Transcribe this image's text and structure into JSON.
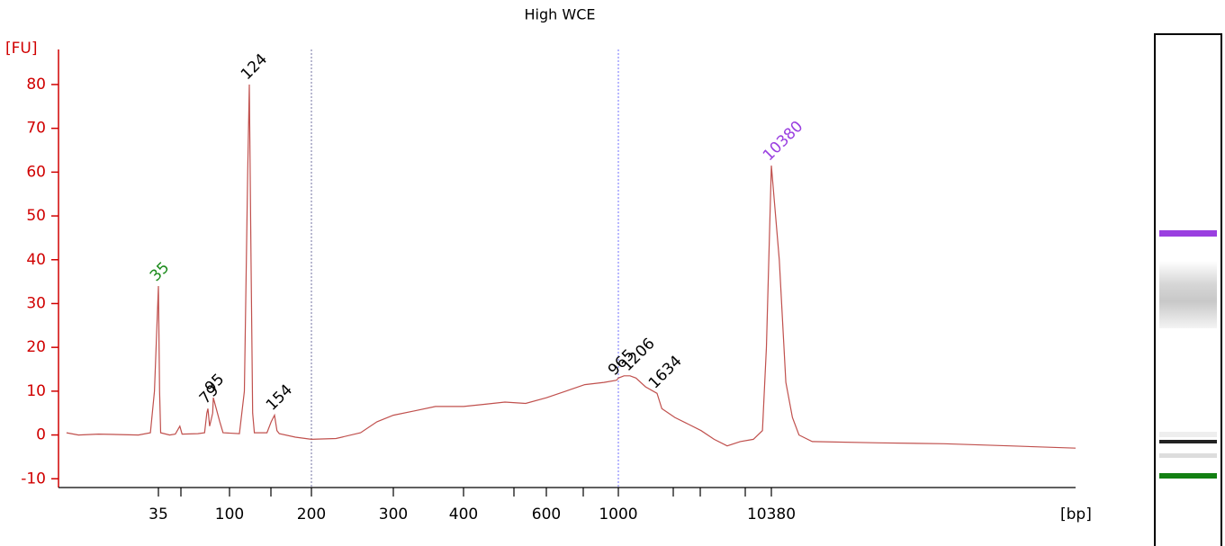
{
  "chart_data": {
    "type": "line",
    "title": "High WCE",
    "y_label": "[FU]",
    "x_label": "[bp]",
    "color": "#c0504d",
    "axis_color": "#d00000",
    "x": [
      12,
      15,
      20,
      30,
      33,
      34,
      35,
      36,
      37,
      45,
      50,
      54,
      56,
      70,
      76,
      78,
      79,
      84,
      93,
      95,
      97,
      98,
      112,
      118,
      122,
      124,
      126,
      128,
      130,
      145,
      150,
      154,
      157,
      160,
      180,
      200,
      230,
      260,
      280,
      300,
      330,
      360,
      400,
      450,
      500,
      550,
      600,
      700,
      800,
      900,
      965,
      1000,
      1100,
      1206,
      1300,
      1450,
      1634,
      2000,
      3000,
      4000,
      5000,
      6000,
      7000,
      8000,
      9000,
      9700,
      10000,
      10380,
      10500,
      10600,
      10700,
      10800,
      11000,
      12000,
      13000,
      14000,
      15000
    ],
    "values": [
      0.5,
      0,
      0.2,
      0,
      0.5,
      10,
      34,
      10,
      0.5,
      0,
      0.2,
      2,
      0.2,
      0.3,
      0.5,
      5,
      6,
      2,
      5,
      8.5,
      3,
      0.5,
      0.3,
      10,
      60,
      80,
      40,
      5,
      0.5,
      0.5,
      3,
      4.5,
      1,
      0.3,
      -0.5,
      -1,
      -0.8,
      0.5,
      3,
      4.5,
      5.5,
      6.5,
      6.5,
      7,
      7.5,
      7.2,
      8.5,
      10,
      11.5,
      12,
      12.5,
      13,
      13.5,
      13.5,
      13,
      11,
      9.5,
      6,
      4,
      2.5,
      1,
      -1,
      -2.5,
      -1.5,
      -1,
      1,
      20,
      61.5,
      40,
      12,
      4,
      0,
      -1.5,
      -1.8,
      -2,
      -2.5,
      -3
    ],
    "xlim": [
      10,
      15000
    ],
    "xticks": [
      35,
      100,
      200,
      300,
      400,
      600,
      1000,
      10380
    ],
    "ylim": [
      -12,
      88
    ],
    "yticks": [
      -10,
      0,
      10,
      20,
      30,
      40,
      50,
      60,
      70,
      80
    ],
    "vlines": [
      {
        "value": 200,
        "color": "#7070a0"
      },
      {
        "value": 1000,
        "color": "#7070ff"
      }
    ],
    "peaks": {
      "x": [
        35,
        79,
        95,
        124,
        154,
        965,
        1206,
        1634,
        10380
      ],
      "values": [
        34,
        6,
        8.5,
        80,
        4.5,
        12.5,
        13.5,
        9.5,
        61.5
      ],
      "colors": [
        "#1a8a1a",
        "#000000",
        "#000000",
        "#000000",
        "#000000",
        "#000000",
        "#000000",
        "#000000",
        "#9a3fe0"
      ]
    }
  }
}
